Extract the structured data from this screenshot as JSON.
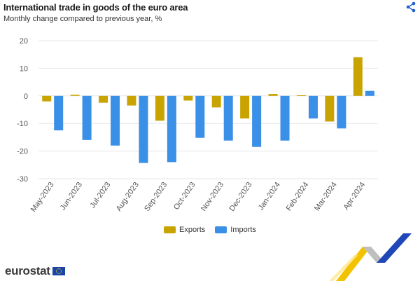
{
  "header": {
    "title": "International trade in goods of the euro area",
    "subtitle": "Monthly change compared to previous year, %"
  },
  "share_icon": "share-icon",
  "brand": {
    "name": "eurostat",
    "flag_icon": "eu-flag-icon"
  },
  "colors": {
    "exports": "#c9a400",
    "imports": "#3a8fe6",
    "grid": "#e6e6e6",
    "axis_text": "#555555"
  },
  "chart_data": {
    "type": "bar",
    "title": "International trade in goods of the euro area",
    "subtitle": "Monthly change compared to previous year, %",
    "categories": [
      "May-2023",
      "Jun-2023",
      "Jul-2023",
      "Aug-2023",
      "Sep-2023",
      "Oct-2023",
      "Nov-2023",
      "Dec-2023",
      "Jan-2024",
      "Feb-2024",
      "Mar-2024",
      "Apr-2024"
    ],
    "series": [
      {
        "name": "Exports",
        "values": [
          -2.0,
          0.4,
          -2.5,
          -3.5,
          -9.0,
          -1.7,
          -4.2,
          -8.2,
          0.7,
          0.2,
          -9.3,
          14.0
        ]
      },
      {
        "name": "Imports",
        "values": [
          -12.5,
          -16.0,
          -18.0,
          -24.3,
          -24.0,
          -15.2,
          -16.2,
          -18.5,
          -16.2,
          -8.2,
          -11.8,
          1.8
        ]
      }
    ],
    "ylim": [
      -30,
      20
    ],
    "yticks": [
      20,
      10,
      0,
      -10,
      -20,
      -30
    ],
    "grid": true,
    "legend": "bottom-center"
  }
}
